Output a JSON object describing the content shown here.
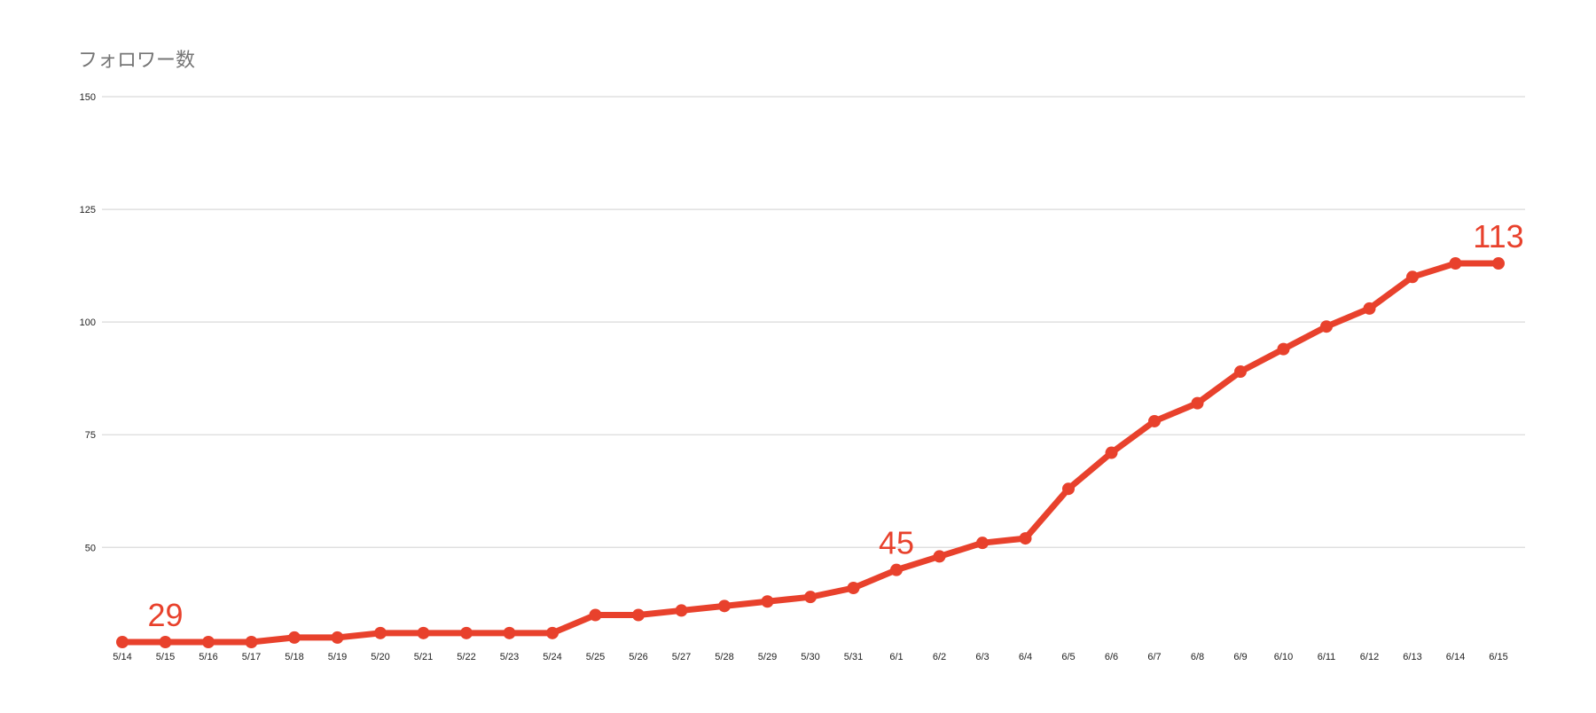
{
  "chart_data": {
    "type": "line",
    "title": "フォロワー数",
    "xlabel": "",
    "ylabel": "",
    "ylim": [
      29,
      150
    ],
    "y_ticks": [
      50,
      75,
      100,
      125,
      150
    ],
    "grid": true,
    "categories": [
      "5/14",
      "5/15",
      "5/16",
      "5/17",
      "5/18",
      "5/19",
      "5/20",
      "5/21",
      "5/22",
      "5/23",
      "5/24",
      "5/25",
      "5/26",
      "5/27",
      "5/28",
      "5/29",
      "5/30",
      "5/31",
      "6/1",
      "6/2",
      "6/3",
      "6/4",
      "6/5",
      "6/6",
      "6/7",
      "6/8",
      "6/9",
      "6/10",
      "6/11",
      "6/12",
      "6/13",
      "6/14",
      "6/15"
    ],
    "series": [
      {
        "values": [
          29,
          29,
          29,
          29,
          30,
          30,
          31,
          31,
          31,
          31,
          31,
          35,
          35,
          36,
          37,
          38,
          39,
          41,
          45,
          48,
          51,
          52,
          63,
          71,
          78,
          82,
          89,
          94,
          99,
          103,
          110,
          113,
          113
        ]
      }
    ],
    "annotations": [
      {
        "index": 1,
        "text": "29"
      },
      {
        "index": 18,
        "text": "45"
      },
      {
        "index": 32,
        "text": "113"
      }
    ],
    "colors": {
      "line": "#e8412c",
      "grid": "#e0e0e0",
      "title": "#757575"
    }
  }
}
